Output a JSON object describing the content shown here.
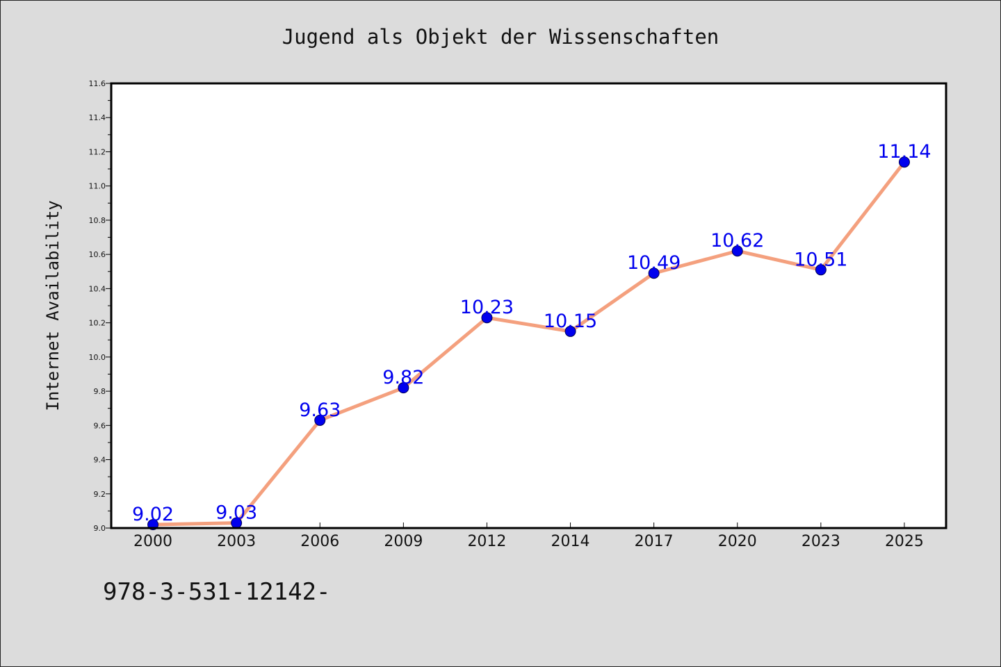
{
  "chart_data": {
    "type": "line",
    "title": "Jugend als Objekt der Wissenschaften",
    "xlabel": "",
    "ylabel": "Internet Availability",
    "categories": [
      "2000",
      "2003",
      "2006",
      "2009",
      "2012",
      "2014",
      "2017",
      "2020",
      "2023",
      "2025"
    ],
    "series": [
      {
        "values": [
          9.02,
          9.03,
          9.63,
          9.82,
          10.23,
          10.15,
          10.49,
          10.62,
          10.51,
          11.14
        ]
      }
    ],
    "data_labels": [
      "9.02",
      "9.03",
      "9.63",
      "9.82",
      "10.23",
      "10.15",
      "10.49",
      "10.62",
      "10.51",
      "11.14"
    ],
    "ylim": [
      9.0,
      11.6
    ],
    "yticks": [
      "9.0",
      "9.2",
      "9.4",
      "9.6",
      "9.8",
      "10.0",
      "10.2",
      "10.4",
      "10.6",
      "10.8",
      "11.0",
      "11.2",
      "11.4",
      "11.6"
    ],
    "grid": false,
    "colors": {
      "line": "#f4a07e",
      "marker": "#0000ee",
      "label": "#0000ee",
      "figure_bg": "#dcdcdc",
      "plot_bg": "#ffffff"
    }
  },
  "footer": {
    "code": "978-3-531-12142-"
  }
}
